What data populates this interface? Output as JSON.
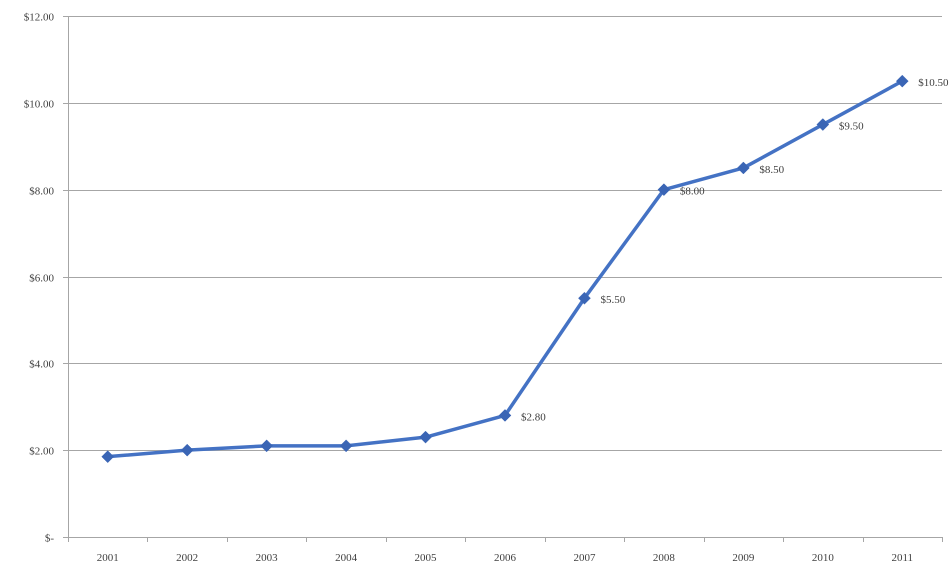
{
  "chart_data": {
    "type": "line",
    "categories": [
      "2001",
      "2002",
      "2003",
      "2004",
      "2005",
      "2006",
      "2007",
      "2008",
      "2009",
      "2010",
      "2011"
    ],
    "series": [
      {
        "values": [
          1.85,
          2.0,
          2.1,
          2.1,
          2.3,
          2.8,
          5.5,
          8.0,
          8.5,
          9.5,
          10.5
        ],
        "color": "#4472c4",
        "marker_color": "#3a65b5",
        "data_labels": [
          null,
          null,
          null,
          null,
          null,
          "$2.80",
          "$5.50",
          "$8.00",
          "$8.50",
          "$9.50",
          "$10.50"
        ]
      }
    ],
    "y_tick_values": [
      0,
      2,
      4,
      6,
      8,
      10,
      12
    ],
    "y_tick_labels": [
      "$-",
      "$2.00",
      "$4.00",
      "$6.00",
      "$8.00",
      "$10.00",
      "$12.00"
    ],
    "ylim": [
      0,
      12
    ],
    "grid": true,
    "legend": false,
    "title": "",
    "xlabel": "",
    "ylabel": ""
  }
}
